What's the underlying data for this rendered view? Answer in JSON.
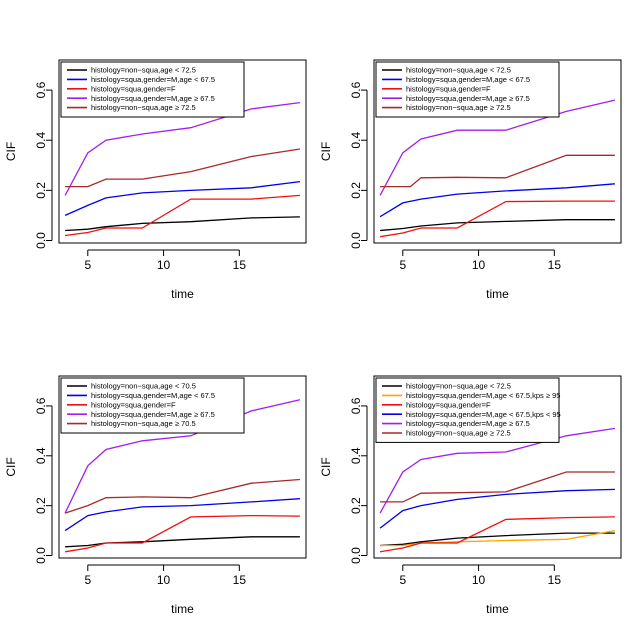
{
  "chart_data": [
    {
      "type": "line",
      "xlabel": "time",
      "ylabel": "CIF",
      "xlim": [
        3.1,
        19.4
      ],
      "ylim": [
        -0.01,
        0.72
      ],
      "xticks": [
        5,
        10,
        15
      ],
      "yticks": [
        0.0,
        0.2,
        0.4,
        0.6
      ],
      "legend_position": "top-left",
      "series": [
        {
          "name": "histology=non−squa,age < 72.5",
          "color": "#000000",
          "x": [
            3.5,
            5,
            6.2,
            8.6,
            11.8,
            15.8,
            19
          ],
          "y": [
            0.04,
            0.045,
            0.055,
            0.068,
            0.075,
            0.09,
            0.094
          ]
        },
        {
          "name": "histology=squa,gender=M,age < 67.5",
          "color": "#0000ee",
          "x": [
            3.5,
            5,
            6.2,
            8.6,
            11.8,
            15.8,
            19
          ],
          "y": [
            0.1,
            0.14,
            0.17,
            0.19,
            0.2,
            0.21,
            0.235
          ]
        },
        {
          "name": "histology=squa,gender=F",
          "color": "#ee1111",
          "x": [
            3.5,
            5,
            6.2,
            8.6,
            11.8,
            15.8,
            19
          ],
          "y": [
            0.02,
            0.032,
            0.05,
            0.05,
            0.165,
            0.165,
            0.18
          ]
        },
        {
          "name": "histology=squa,gender=M,age ≥ 67.5",
          "color": "#a020f0",
          "x": [
            3.5,
            5,
            6.2,
            8.6,
            11.8,
            15.8,
            19
          ],
          "y": [
            0.18,
            0.35,
            0.4,
            0.425,
            0.45,
            0.525,
            0.55
          ]
        },
        {
          "name": "histology=non−squa,age ≥ 72.5",
          "color": "#a52a2a",
          "x": [
            3.5,
            5,
            6.2,
            8.6,
            11.8,
            15.8,
            19
          ],
          "y": [
            0.215,
            0.215,
            0.245,
            0.245,
            0.275,
            0.335,
            0.365
          ]
        }
      ]
    },
    {
      "type": "line",
      "xlabel": "time",
      "ylabel": "CIF",
      "xlim": [
        3.1,
        19.4
      ],
      "ylim": [
        -0.01,
        0.72
      ],
      "xticks": [
        5,
        10,
        15
      ],
      "yticks": [
        0.0,
        0.2,
        0.4,
        0.6
      ],
      "legend_position": "top-left",
      "series": [
        {
          "name": "histology=non−squa,age < 72.5",
          "color": "#000000",
          "x": [
            3.5,
            5,
            6.2,
            8.6,
            11.8,
            15.8,
            19
          ],
          "y": [
            0.04,
            0.048,
            0.058,
            0.07,
            0.076,
            0.083,
            0.083
          ]
        },
        {
          "name": "histology=squa,gender=M,age < 67.5",
          "color": "#0000ee",
          "x": [
            3.5,
            5,
            6.2,
            8.6,
            11.8,
            15.8,
            19
          ],
          "y": [
            0.095,
            0.15,
            0.165,
            0.185,
            0.198,
            0.21,
            0.226
          ]
        },
        {
          "name": "histology=squa,gender=F",
          "color": "#ee1111",
          "x": [
            3.5,
            5,
            6.2,
            8.6,
            11.8,
            15.8,
            19
          ],
          "y": [
            0.015,
            0.03,
            0.05,
            0.05,
            0.155,
            0.157,
            0.157
          ]
        },
        {
          "name": "histology=squa,gender=M,age ≥ 67.5",
          "color": "#a020f0",
          "x": [
            3.5,
            5,
            6.2,
            8.6,
            11.8,
            15.8,
            19
          ],
          "y": [
            0.18,
            0.35,
            0.405,
            0.44,
            0.44,
            0.515,
            0.56
          ]
        },
        {
          "name": "histology=non−squa,age ≥ 72.5",
          "color": "#a52a2a",
          "x": [
            3.5,
            5,
            5.5,
            6.2,
            8.6,
            11.8,
            15.8,
            19
          ],
          "y": [
            0.215,
            0.215,
            0.215,
            0.25,
            0.252,
            0.25,
            0.34,
            0.34
          ]
        }
      ]
    },
    {
      "type": "line",
      "xlabel": "time",
      "ylabel": "CIF",
      "xlim": [
        3.1,
        19.4
      ],
      "ylim": [
        -0.01,
        0.72
      ],
      "xticks": [
        5,
        10,
        15
      ],
      "yticks": [
        0.0,
        0.2,
        0.4,
        0.6
      ],
      "legend_position": "top-left",
      "series": [
        {
          "name": "histology=non−squa,age < 70.5",
          "color": "#000000",
          "x": [
            3.5,
            5,
            6.2,
            8.6,
            11.8,
            15.8,
            19
          ],
          "y": [
            0.035,
            0.04,
            0.05,
            0.055,
            0.065,
            0.075,
            0.075
          ]
        },
        {
          "name": "histology=squa,gender=M,age < 67.5",
          "color": "#0000ee",
          "x": [
            3.5,
            5,
            6.2,
            8.6,
            11.8,
            15.8,
            19
          ],
          "y": [
            0.1,
            0.16,
            0.175,
            0.195,
            0.2,
            0.215,
            0.228
          ]
        },
        {
          "name": "histology=squa,gender=F",
          "color": "#ee1111",
          "x": [
            3.5,
            5,
            6.2,
            8.6,
            11.8,
            15.8,
            19
          ],
          "y": [
            0.015,
            0.03,
            0.05,
            0.05,
            0.155,
            0.16,
            0.158
          ]
        },
        {
          "name": "histology=squa,gender=M,age ≥ 67.5",
          "color": "#a020f0",
          "x": [
            3.5,
            5,
            6.2,
            8.6,
            11.8,
            15.8,
            19
          ],
          "y": [
            0.17,
            0.36,
            0.425,
            0.46,
            0.48,
            0.58,
            0.625
          ]
        },
        {
          "name": "histology=non−squa,age ≥ 70.5",
          "color": "#a52a2a",
          "x": [
            3.5,
            5,
            6.2,
            8.6,
            11.8,
            15.8,
            19
          ],
          "y": [
            0.17,
            0.2,
            0.232,
            0.235,
            0.232,
            0.29,
            0.305
          ]
        }
      ]
    },
    {
      "type": "line",
      "xlabel": "time",
      "ylabel": "CIF",
      "xlim": [
        3.1,
        19.4
      ],
      "ylim": [
        -0.01,
        0.72
      ],
      "xticks": [
        5,
        10,
        15
      ],
      "yticks": [
        0.0,
        0.2,
        0.4,
        0.6
      ],
      "legend_position": "top-left",
      "series": [
        {
          "name": "histology=non−squa,age < 72.5",
          "color": "#000000",
          "x": [
            3.5,
            5,
            6.2,
            8.6,
            11.8,
            15.8,
            19
          ],
          "y": [
            0.04,
            0.045,
            0.055,
            0.07,
            0.08,
            0.09,
            0.09
          ]
        },
        {
          "name": "histology=squa,gender=M,age < 67.5,kps ≥ 95",
          "color": "#ffa500",
          "x": [
            3.5,
            5,
            6.2,
            8.6,
            11.8,
            15.8,
            19
          ],
          "y": [
            0.04,
            0.04,
            0.05,
            0.055,
            0.06,
            0.065,
            0.1
          ]
        },
        {
          "name": "histology=squa,gender=F",
          "color": "#ee1111",
          "x": [
            3.5,
            5,
            6.2,
            8.6,
            11.8,
            15.8,
            19
          ],
          "y": [
            0.015,
            0.03,
            0.05,
            0.05,
            0.145,
            0.152,
            0.155
          ]
        },
        {
          "name": "histology=squa,gender=M,age < 67.5,kps < 95",
          "color": "#0000ee",
          "x": [
            3.5,
            5,
            6.2,
            8.6,
            11.8,
            15.8,
            19
          ],
          "y": [
            0.11,
            0.18,
            0.2,
            0.225,
            0.245,
            0.26,
            0.265
          ]
        },
        {
          "name": "histology=squa,gender=M,age ≥ 67.5",
          "color": "#a020f0",
          "x": [
            3.5,
            5,
            6.2,
            8.6,
            11.8,
            15.8,
            19
          ],
          "y": [
            0.17,
            0.335,
            0.385,
            0.41,
            0.415,
            0.48,
            0.51
          ]
        },
        {
          "name": "histology=non−squa,age ≥ 72.5",
          "color": "#a52a2a",
          "x": [
            3.5,
            5,
            6.2,
            8.6,
            11.8,
            15.8,
            19
          ],
          "y": [
            0.215,
            0.215,
            0.25,
            0.252,
            0.255,
            0.335,
            0.335
          ]
        }
      ]
    }
  ]
}
